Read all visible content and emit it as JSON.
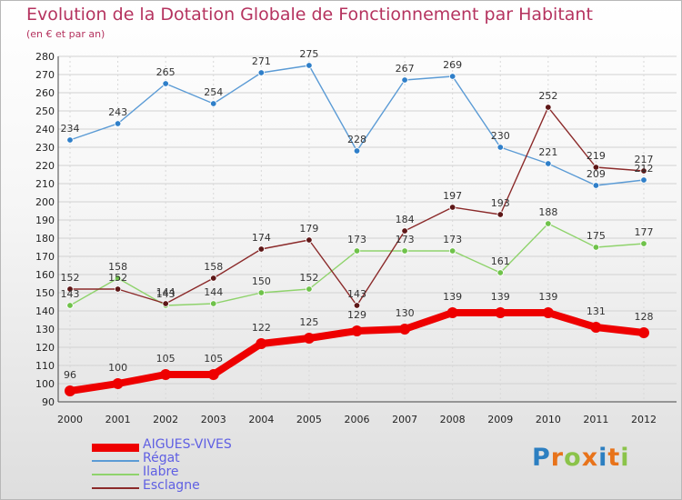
{
  "header": {
    "title": "Evolution de la Dotation Globale de Fonctionnement par Habitant",
    "subtitle": "(en € et par an)"
  },
  "colors": {
    "title": "#b5335f",
    "legend_text": "#5f5fe3"
  },
  "brand": {
    "letters": [
      "P",
      "r",
      "o",
      "x",
      "i",
      "t",
      "i"
    ],
    "colors": [
      "#2c7fc1",
      "#e8731a",
      "#8bc34a",
      "#e8731a",
      "#2c7fc1",
      "#e8731a",
      "#8bc34a"
    ]
  },
  "chart_data": {
    "type": "line",
    "title": "Evolution de la Dotation Globale de Fonctionnement par Habitant",
    "ylabel": "(en € et par an)",
    "xlabel": "",
    "categories": [
      "2000",
      "2001",
      "2002",
      "2003",
      "2004",
      "2005",
      "2006",
      "2007",
      "2008",
      "2009",
      "2010",
      "2011",
      "2012"
    ],
    "ylim": [
      90,
      280
    ],
    "yticks": [
      90,
      100,
      110,
      120,
      130,
      140,
      150,
      160,
      170,
      180,
      190,
      200,
      210,
      220,
      230,
      240,
      250,
      260,
      270,
      280
    ],
    "grid": true,
    "legend_position": "bottom-left",
    "series": [
      {
        "name": "Régat",
        "color": "#5b9bd5",
        "marker": "#2f7fc9",
        "values": [
          234,
          243,
          265,
          254,
          271,
          275,
          228,
          267,
          269,
          230,
          221,
          209,
          212
        ]
      },
      {
        "name": "Ilabre",
        "color": "#8fd36c",
        "marker": "#6fc24a",
        "values": [
          143,
          158,
          143,
          144,
          150,
          152,
          173,
          173,
          173,
          161,
          188,
          175,
          177
        ]
      },
      {
        "name": "Esclagne",
        "color": "#8b2a2a",
        "marker": "#5e1717",
        "values": [
          152,
          152,
          144,
          158,
          174,
          179,
          143,
          184,
          197,
          193,
          252,
          219,
          217
        ]
      },
      {
        "name": "AIGUES-VIVES",
        "color": "#ee0000",
        "marker": "#ee0000",
        "thick": true,
        "values": [
          96,
          100,
          105,
          105,
          122,
          125,
          129,
          130,
          139,
          139,
          139,
          131,
          128
        ]
      }
    ],
    "legend_order": [
      "AIGUES-VIVES",
      "Régat",
      "Ilabre",
      "Esclagne"
    ]
  }
}
